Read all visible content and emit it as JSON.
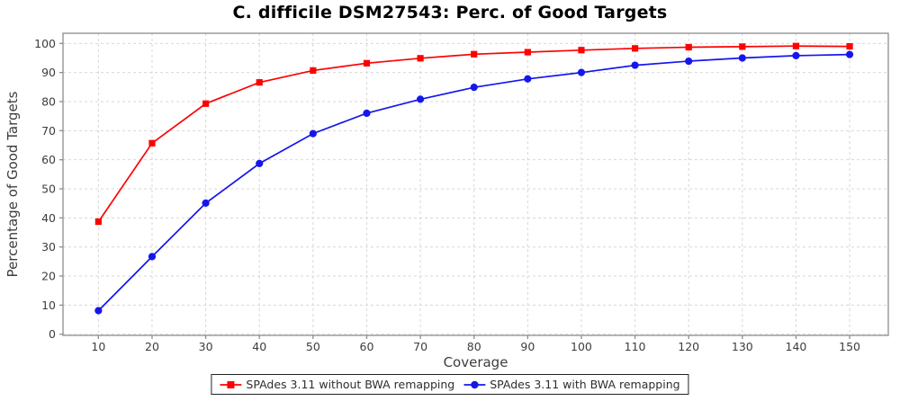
{
  "title": "C. difficile DSM27543: Perc. of Good Targets",
  "chart_data": {
    "type": "line",
    "title": "C. difficile DSM27543: Perc. of Good Targets",
    "xlabel": "Coverage",
    "ylabel": "Percentage of Good Targets",
    "x": [
      10,
      20,
      30,
      40,
      50,
      60,
      70,
      80,
      90,
      100,
      110,
      120,
      130,
      140,
      150
    ],
    "yticks": [
      0,
      10,
      20,
      30,
      40,
      50,
      60,
      70,
      80,
      90,
      100
    ],
    "xlim": [
      3,
      157
    ],
    "ylim": [
      0,
      100
    ],
    "grid": true,
    "legend_position": "bottom",
    "series": [
      {
        "name": "SPAdes 3.11 without BWA remapping",
        "color": "#fe0000",
        "marker": "square",
        "values": [
          38.7,
          65.7,
          79.3,
          86.6,
          90.7,
          93.2,
          94.9,
          96.3,
          97.0,
          97.7,
          98.3,
          98.7,
          98.9,
          99.1,
          99.0
        ]
      },
      {
        "name": "SPAdes 3.11 with BWA remapping",
        "color": "#1616ec",
        "marker": "circle",
        "values": [
          8.1,
          26.7,
          45.1,
          58.7,
          69.0,
          76.0,
          80.8,
          84.9,
          87.8,
          90.0,
          92.5,
          93.9,
          95.0,
          95.8,
          96.2
        ]
      }
    ]
  }
}
